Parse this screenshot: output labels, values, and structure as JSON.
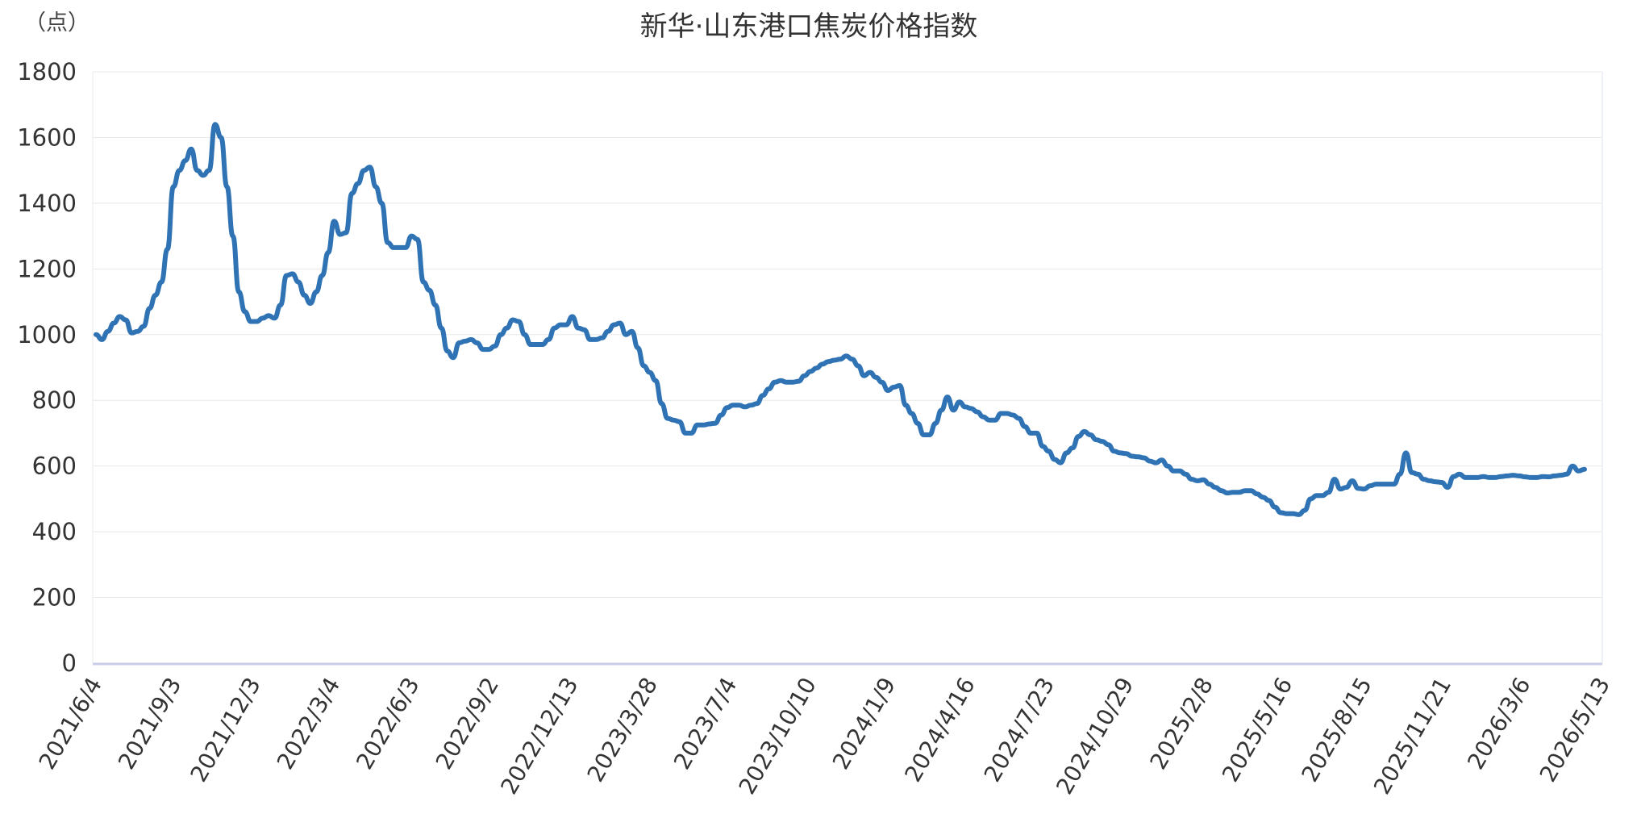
{
  "colors": {
    "line": "#2f73b5",
    "axis": "#c9cde8",
    "grid": "#e8e8e8"
  },
  "chart_data": {
    "type": "line",
    "title": "新华·山东港口焦炭价格指数",
    "unit_label": "（点）",
    "ylim": [
      0,
      1800
    ],
    "yticks": [
      0,
      200,
      400,
      600,
      800,
      1000,
      1200,
      1400,
      1600,
      1800
    ],
    "xtick_labels": [
      "2021/6/4",
      "2021/9/3",
      "2021/12/3",
      "2022/3/4",
      "2022/6/3",
      "2022/9/2",
      "2022/12/13",
      "2023/3/28",
      "2023/7/4",
      "2023/10/10",
      "2024/1/9",
      "2024/4/16",
      "2024/7/23",
      "2024/10/29",
      "2025/2/8",
      "2025/5/16",
      "2025/8/15",
      "2025/11/21",
      "2026/3/6",
      "2026/5/13"
    ],
    "grid": true,
    "legend": "none",
    "series": [
      {
        "values": [
          1000,
          985,
          1010,
          1035,
          1055,
          1045,
          1005,
          1010,
          1025,
          1080,
          1120,
          1160,
          1260,
          1450,
          1500,
          1530,
          1565,
          1500,
          1485,
          1500,
          1640,
          1600,
          1450,
          1300,
          1130,
          1070,
          1040,
          1040,
          1050,
          1058,
          1050,
          1090,
          1180,
          1185,
          1160,
          1120,
          1095,
          1130,
          1180,
          1250,
          1345,
          1305,
          1310,
          1430,
          1460,
          1500,
          1510,
          1450,
          1400,
          1280,
          1265,
          1265,
          1265,
          1300,
          1290,
          1160,
          1135,
          1090,
          1020,
          950,
          930,
          975,
          980,
          985,
          975,
          955,
          955,
          965,
          1000,
          1020,
          1045,
          1040,
          1000,
          970,
          970,
          970,
          985,
          1020,
          1030,
          1030,
          1055,
          1020,
          1015,
          985,
          985,
          990,
          1010,
          1030,
          1035,
          1000,
          1010,
          960,
          905,
          885,
          860,
          790,
          745,
          740,
          735,
          700,
          700,
          725,
          725,
          728,
          730,
          755,
          778,
          785,
          785,
          780,
          785,
          790,
          815,
          835,
          855,
          860,
          855,
          855,
          858,
          875,
          888,
          898,
          910,
          918,
          922,
          925,
          935,
          925,
          905,
          875,
          885,
          870,
          855,
          830,
          840,
          845,
          785,
          760,
          730,
          695,
          695,
          730,
          770,
          810,
          770,
          795,
          780,
          775,
          765,
          750,
          740,
          740,
          760,
          760,
          755,
          745,
          720,
          700,
          700,
          660,
          645,
          620,
          610,
          640,
          655,
          690,
          705,
          695,
          680,
          675,
          665,
          645,
          640,
          638,
          630,
          628,
          625,
          615,
          610,
          618,
          600,
          585,
          585,
          575,
          560,
          555,
          558,
          545,
          535,
          525,
          518,
          520,
          520,
          525,
          525,
          515,
          505,
          495,
          475,
          458,
          455,
          455,
          452,
          465,
          500,
          510,
          510,
          520,
          560,
          530,
          535,
          555,
          532,
          530,
          540,
          545,
          545,
          545,
          545,
          575,
          640,
          580,
          575,
          560,
          555,
          552,
          550,
          535,
          568,
          575,
          565,
          565,
          565,
          568,
          565,
          565,
          568,
          570,
          572,
          570,
          567,
          565,
          565,
          568,
          567,
          570,
          572,
          575,
          600,
          585,
          590
        ]
      }
    ]
  }
}
